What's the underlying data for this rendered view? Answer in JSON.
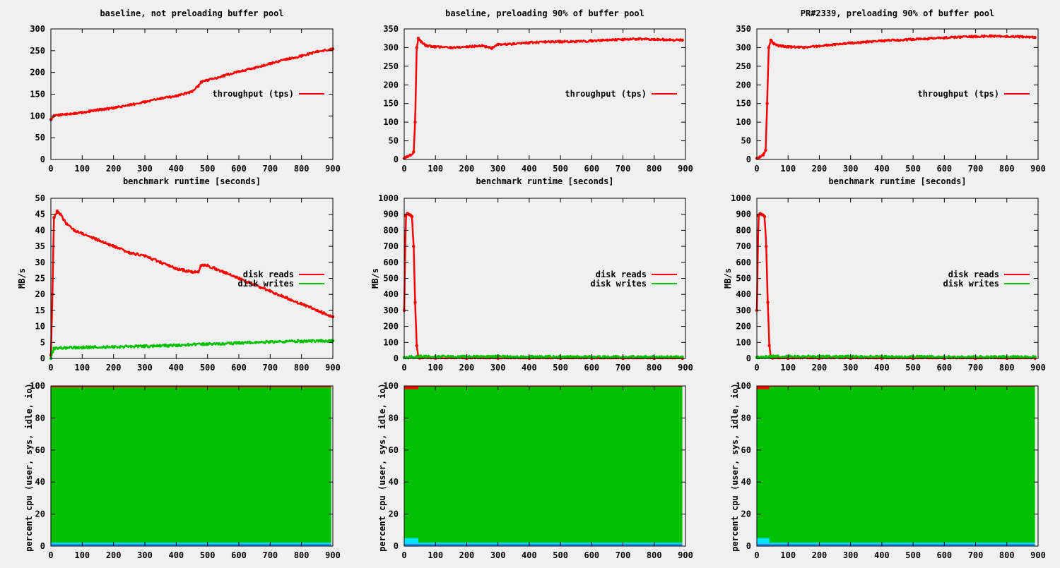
{
  "colors": {
    "background": "#f0f0f0",
    "throughput": "#ff0000",
    "disk_reads": "#ff0000",
    "disk_writes": "#00c000",
    "cpu_user": "#ff0000",
    "cpu_sys": "#00c000",
    "cpu_idle": "#1e90ff",
    "cpu_io": "#00e5ff",
    "axis": "#000000"
  },
  "chart_data": [
    {
      "id": "c00",
      "type": "line",
      "title": "baseline, not preloading buffer pool",
      "xlabel": "benchmark runtime [seconds]",
      "ylabel": "",
      "xlim": [
        0,
        900
      ],
      "ylim": [
        0,
        300
      ],
      "xticks": [
        0,
        100,
        200,
        300,
        400,
        500,
        600,
        700,
        800,
        900
      ],
      "yticks": [
        0,
        50,
        100,
        150,
        200,
        250,
        300
      ],
      "legend": "right",
      "series": [
        {
          "name": "throughput (tps)",
          "color": "#ff0000",
          "x": [
            0,
            10,
            25,
            50,
            75,
            100,
            150,
            200,
            250,
            300,
            350,
            400,
            450,
            470,
            480,
            500,
            550,
            600,
            650,
            700,
            750,
            800,
            850,
            900
          ],
          "y": [
            92,
            100,
            102,
            104,
            106,
            108,
            114,
            118,
            125,
            132,
            140,
            146,
            156,
            168,
            178,
            182,
            192,
            202,
            210,
            220,
            230,
            238,
            248,
            254
          ]
        }
      ]
    },
    {
      "id": "c01",
      "type": "line",
      "title": "baseline, preloading 90% of buffer pool",
      "xlabel": "benchmark runtime [seconds]",
      "ylabel": "",
      "xlim": [
        0,
        900
      ],
      "ylim": [
        0,
        350
      ],
      "xticks": [
        0,
        100,
        200,
        300,
        400,
        500,
        600,
        700,
        800,
        900
      ],
      "yticks": [
        0,
        50,
        100,
        150,
        200,
        250,
        300,
        350
      ],
      "legend": "right",
      "series": [
        {
          "name": "throughput (tps)",
          "color": "#ff0000",
          "x": [
            0,
            10,
            20,
            30,
            35,
            40,
            45,
            55,
            70,
            100,
            150,
            200,
            250,
            280,
            300,
            350,
            400,
            450,
            500,
            550,
            600,
            650,
            700,
            750,
            800,
            850,
            890
          ],
          "y": [
            3,
            8,
            12,
            20,
            100,
            300,
            325,
            315,
            305,
            302,
            300,
            302,
            305,
            298,
            308,
            310,
            313,
            315,
            316,
            316,
            318,
            320,
            322,
            323,
            322,
            321,
            320
          ]
        }
      ]
    },
    {
      "id": "c02",
      "type": "line",
      "title": "PR#2339, preloading 90% of buffer pool",
      "xlabel": "benchmark runtime [seconds]",
      "ylabel": "",
      "xlim": [
        0,
        900
      ],
      "ylim": [
        0,
        350
      ],
      "xticks": [
        0,
        100,
        200,
        300,
        400,
        500,
        600,
        700,
        800,
        900
      ],
      "yticks": [
        0,
        50,
        100,
        150,
        200,
        250,
        300,
        350
      ],
      "legend": "right",
      "series": [
        {
          "name": "throughput (tps)",
          "color": "#ff0000",
          "x": [
            0,
            10,
            20,
            28,
            33,
            38,
            45,
            55,
            70,
            100,
            150,
            200,
            250,
            300,
            350,
            400,
            450,
            500,
            550,
            600,
            650,
            700,
            750,
            800,
            850,
            890
          ],
          "y": [
            3,
            7,
            12,
            25,
            150,
            300,
            320,
            310,
            305,
            302,
            300,
            304,
            308,
            312,
            315,
            318,
            320,
            322,
            324,
            326,
            328,
            330,
            331,
            330,
            329,
            327
          ]
        }
      ]
    },
    {
      "id": "c10",
      "type": "line",
      "title": "",
      "xlabel": "",
      "ylabel": "MB/s",
      "xlim": [
        0,
        900
      ],
      "ylim": [
        0,
        50
      ],
      "xticks": [
        0,
        100,
        200,
        300,
        400,
        500,
        600,
        700,
        800,
        900
      ],
      "yticks": [
        0,
        5,
        10,
        15,
        20,
        25,
        30,
        35,
        40,
        45,
        50
      ],
      "legend": "right",
      "series": [
        {
          "name": "disk reads",
          "color": "#ff0000",
          "x": [
            0,
            5,
            10,
            20,
            30,
            50,
            75,
            100,
            150,
            200,
            250,
            300,
            350,
            400,
            450,
            470,
            480,
            500,
            550,
            600,
            650,
            700,
            750,
            800,
            850,
            900
          ],
          "y": [
            1,
            20,
            44,
            46,
            45,
            42,
            40,
            39,
            37,
            35,
            33,
            32,
            30,
            28,
            27,
            27,
            29,
            29,
            27,
            25,
            23,
            21,
            19,
            17,
            15,
            13
          ]
        },
        {
          "name": "disk writes",
          "color": "#00c000",
          "x": [
            0,
            5,
            10,
            50,
            100,
            200,
            300,
            400,
            500,
            600,
            700,
            800,
            900
          ],
          "y": [
            0,
            2,
            3.2,
            3.3,
            3.4,
            3.6,
            3.8,
            4.1,
            4.5,
            4.8,
            5.2,
            5.4,
            5.5
          ]
        }
      ]
    },
    {
      "id": "c11",
      "type": "line",
      "title": "",
      "xlabel": "",
      "ylabel": "MB/s",
      "xlim": [
        0,
        900
      ],
      "ylim": [
        0,
        1000
      ],
      "xticks": [
        0,
        100,
        200,
        300,
        400,
        500,
        600,
        700,
        800,
        900
      ],
      "yticks": [
        0,
        100,
        200,
        300,
        400,
        500,
        600,
        700,
        800,
        900,
        1000
      ],
      "legend": "right",
      "series": [
        {
          "name": "disk reads",
          "color": "#ff0000",
          "x": [
            0,
            5,
            10,
            15,
            20,
            25,
            30,
            35,
            40,
            45,
            50,
            100,
            200,
            300,
            400,
            500,
            600,
            700,
            800,
            890
          ],
          "y": [
            300,
            890,
            905,
            900,
            895,
            885,
            700,
            350,
            80,
            5,
            2,
            1,
            0,
            0,
            0,
            0,
            0,
            0,
            0,
            0
          ]
        },
        {
          "name": "disk writes",
          "color": "#00c000",
          "x": [
            0,
            20,
            40,
            50,
            100,
            200,
            300,
            400,
            500,
            600,
            700,
            800,
            890
          ],
          "y": [
            5,
            8,
            10,
            12,
            12,
            11,
            11,
            10,
            10,
            9,
            9,
            9,
            9
          ]
        }
      ]
    },
    {
      "id": "c12",
      "type": "line",
      "title": "",
      "xlabel": "",
      "ylabel": "MB/s",
      "xlim": [
        0,
        900
      ],
      "ylim": [
        0,
        1000
      ],
      "xticks": [
        0,
        100,
        200,
        300,
        400,
        500,
        600,
        700,
        800,
        900
      ],
      "yticks": [
        0,
        100,
        200,
        300,
        400,
        500,
        600,
        700,
        800,
        900,
        1000
      ],
      "legend": "right",
      "series": [
        {
          "name": "disk reads",
          "color": "#ff0000",
          "x": [
            0,
            5,
            10,
            15,
            20,
            25,
            30,
            35,
            40,
            45,
            50,
            100,
            200,
            300,
            400,
            500,
            600,
            700,
            800,
            890
          ],
          "y": [
            300,
            890,
            905,
            900,
            895,
            885,
            700,
            350,
            80,
            5,
            2,
            1,
            0,
            0,
            0,
            0,
            0,
            0,
            0,
            0
          ]
        },
        {
          "name": "disk writes",
          "color": "#00c000",
          "x": [
            0,
            20,
            40,
            50,
            100,
            200,
            300,
            400,
            500,
            600,
            700,
            800,
            890
          ],
          "y": [
            5,
            8,
            10,
            12,
            12,
            11,
            11,
            10,
            10,
            9,
            9,
            9,
            9
          ]
        }
      ]
    },
    {
      "id": "c20",
      "type": "area",
      "title": "",
      "xlabel": "",
      "ylabel": "percent cpu (user, sys, idle, io)",
      "xlim": [
        0,
        900
      ],
      "ylim": [
        0,
        100
      ],
      "xticks": [
        0,
        100,
        200,
        300,
        400,
        500,
        600,
        700,
        800,
        900
      ],
      "yticks": [
        0,
        20,
        40,
        60,
        80,
        100
      ],
      "data_xmax": 895,
      "bands": [
        {
          "name": "idle",
          "color": "#1e90ff",
          "from": 0,
          "to": 1.5
        },
        {
          "name": "io",
          "color": "#00e5ff",
          "from": 1.5,
          "to": 2.2
        },
        {
          "name": "sys",
          "color": "#00c000",
          "from": 2.2,
          "to": 99.2
        },
        {
          "name": "user",
          "color": "#ff0000",
          "from": 99.2,
          "to": 100
        }
      ]
    },
    {
      "id": "c21",
      "type": "area",
      "title": "",
      "xlabel": "",
      "ylabel": "percent cpu (user, sys, idle, io)",
      "xlim": [
        0,
        900
      ],
      "ylim": [
        0,
        100
      ],
      "xticks": [
        0,
        100,
        200,
        300,
        400,
        500,
        600,
        700,
        800,
        900
      ],
      "yticks": [
        0,
        20,
        40,
        60,
        80,
        100
      ],
      "data_xmax": 890,
      "bands": [
        {
          "name": "idle",
          "color": "#1e90ff",
          "from": 0,
          "to": 1.5
        },
        {
          "name": "io",
          "color": "#00e5ff",
          "from": 1.5,
          "to": 2.2
        },
        {
          "name": "sys",
          "color": "#00c000",
          "from": 2.2,
          "to": 99.5
        },
        {
          "name": "user",
          "color": "#ff0000",
          "from": 99.5,
          "to": 100
        }
      ],
      "io_spike": {
        "x0": 0,
        "x1": 45,
        "top": 5
      }
    },
    {
      "id": "c22",
      "type": "area",
      "title": "",
      "xlabel": "",
      "ylabel": "percent cpu (user, sys, idle, io)",
      "xlim": [
        0,
        900
      ],
      "ylim": [
        0,
        100
      ],
      "xticks": [
        0,
        100,
        200,
        300,
        400,
        500,
        600,
        700,
        800,
        900
      ],
      "yticks": [
        0,
        20,
        40,
        60,
        80,
        100
      ],
      "data_xmax": 890,
      "bands": [
        {
          "name": "idle",
          "color": "#1e90ff",
          "from": 0,
          "to": 1.5
        },
        {
          "name": "io",
          "color": "#00e5ff",
          "from": 1.5,
          "to": 2.2
        },
        {
          "name": "sys",
          "color": "#00c000",
          "from": 2.2,
          "to": 99.5
        },
        {
          "name": "user",
          "color": "#ff0000",
          "from": 99.5,
          "to": 100
        }
      ],
      "io_spike": {
        "x0": 0,
        "x1": 40,
        "top": 5
      }
    }
  ]
}
